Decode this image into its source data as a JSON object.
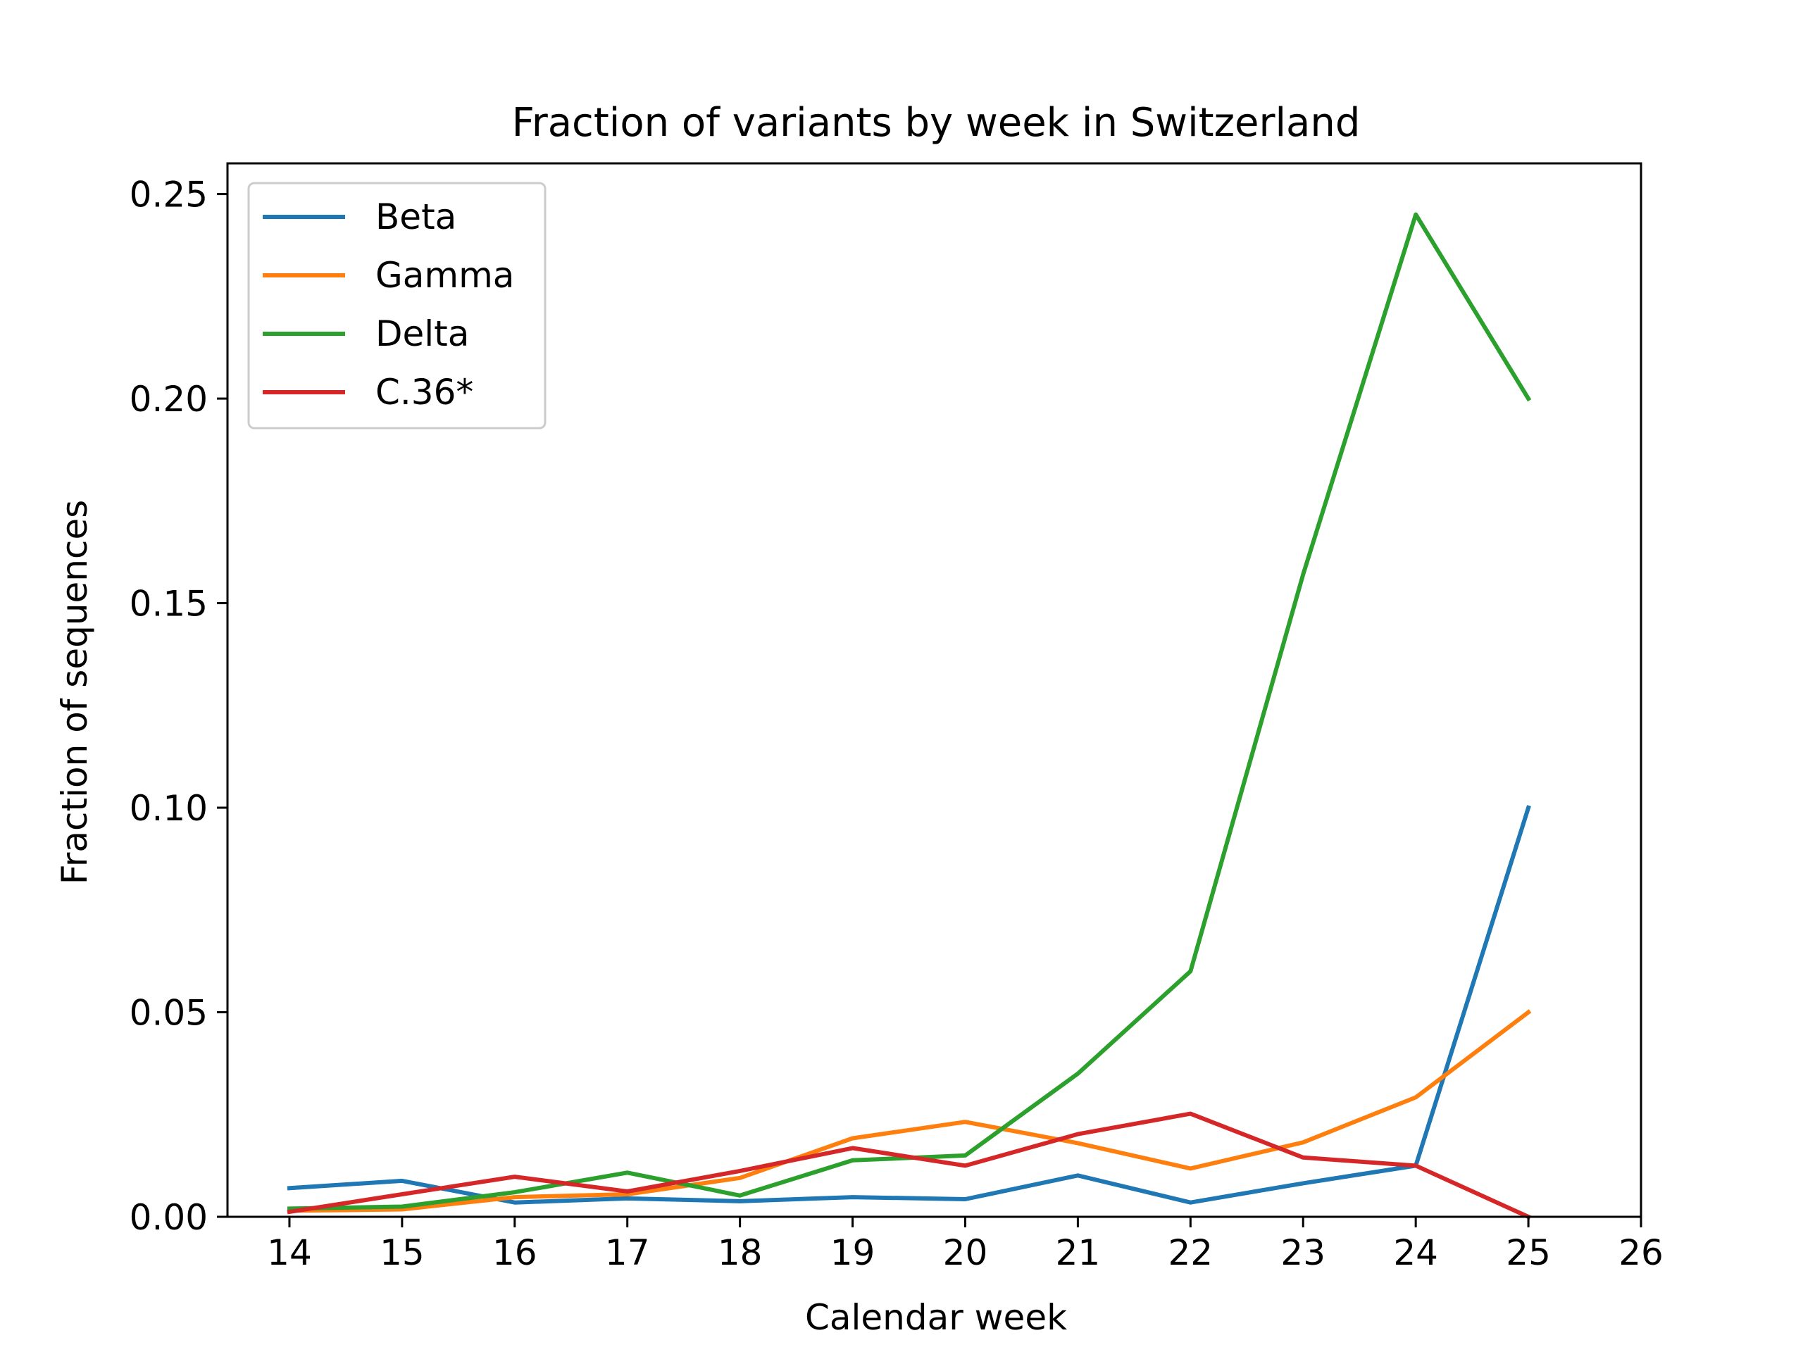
{
  "chart_data": {
    "type": "line",
    "title": "Fraction of variants by week in Switzerland",
    "xlabel": "Calendar week",
    "ylabel": "Fraction of sequences",
    "xlim": [
      13.45,
      26
    ],
    "ylim": [
      0,
      0.2575
    ],
    "x_ticks": [
      "14",
      "15",
      "16",
      "17",
      "18",
      "19",
      "20",
      "21",
      "22",
      "23",
      "24",
      "25",
      "26"
    ],
    "y_ticks": [
      "0.00",
      "0.05",
      "0.10",
      "0.15",
      "0.20",
      "0.25"
    ],
    "x": [
      14,
      15,
      16,
      17,
      18,
      19,
      20,
      21,
      22,
      23,
      24,
      25
    ],
    "grid": false,
    "legend_position": "top-left",
    "series": [
      {
        "name": "Beta",
        "color": "#1f77b4",
        "values": [
          0.007,
          0.0088,
          0.0035,
          0.0045,
          0.0038,
          0.0048,
          0.0043,
          0.0101,
          0.0035,
          0.0082,
          0.0125,
          0.1
        ]
      },
      {
        "name": "Gamma",
        "color": "#ff7f0e",
        "values": [
          0.0015,
          0.0018,
          0.0048,
          0.0055,
          0.0095,
          0.0192,
          0.0232,
          0.018,
          0.0118,
          0.0182,
          0.0292,
          0.05
        ]
      },
      {
        "name": "Delta",
        "color": "#2ca02c",
        "values": [
          0.002,
          0.0025,
          0.006,
          0.0108,
          0.0052,
          0.0138,
          0.015,
          0.035,
          0.06,
          0.157,
          0.245,
          0.2
        ]
      },
      {
        "name": "C.36*",
        "color": "#d62728",
        "values": [
          0.0012,
          0.0055,
          0.0098,
          0.0062,
          0.0112,
          0.0168,
          0.0125,
          0.0202,
          0.0252,
          0.0145,
          0.0125,
          0.0
        ]
      }
    ]
  }
}
